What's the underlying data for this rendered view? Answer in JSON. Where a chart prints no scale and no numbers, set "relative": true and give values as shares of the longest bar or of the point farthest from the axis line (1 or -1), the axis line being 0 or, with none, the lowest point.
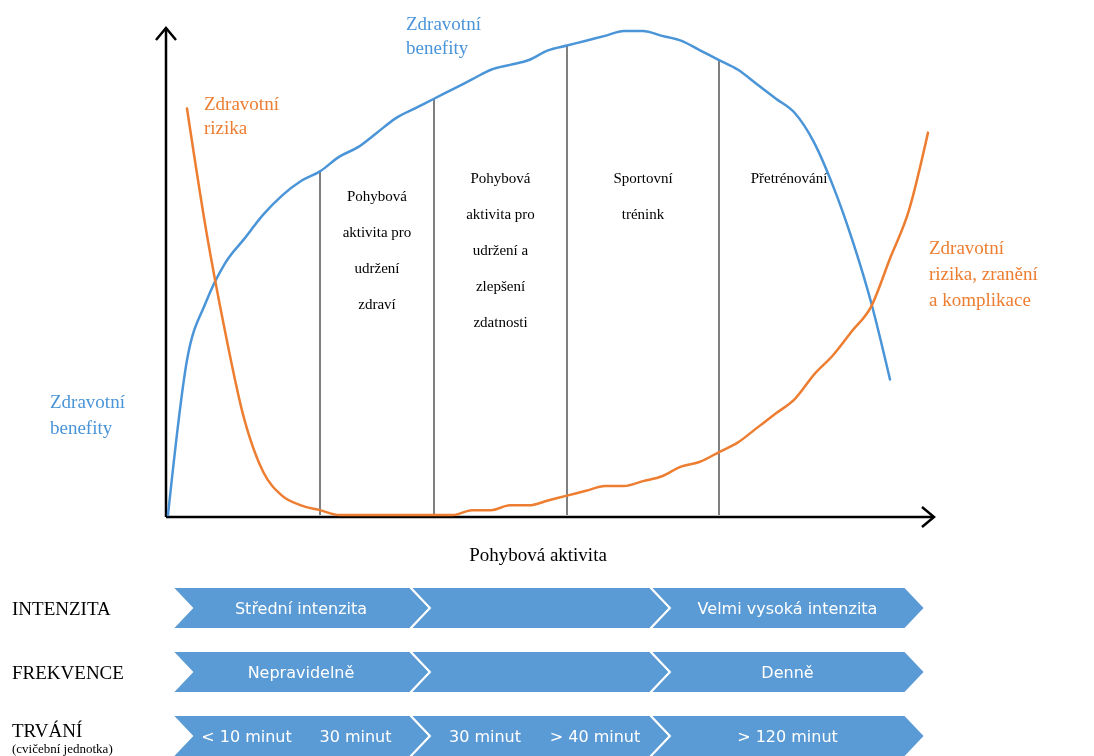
{
  "chart_data": [
    {
      "type": "line",
      "relative": true,
      "grid": "x",
      "xlabel": "Pohybová aktivita",
      "categories": [
        null,
        null,
        null,
        null,
        null,
        null,
        null,
        null,
        null,
        null,
        null,
        null,
        null,
        null,
        null,
        null,
        null,
        null,
        null,
        null,
        null,
        null,
        null,
        null,
        null,
        null,
        null,
        null,
        null,
        null,
        null,
        null,
        null,
        null,
        null,
        null,
        null,
        null,
        null,
        null,
        null
      ],
      "series": [
        {
          "name": "Zdravotní benefity",
          "color": "#4a94d8",
          "values": [
            0,
            0.32,
            0.44,
            0.52,
            0.57,
            0.62,
            0.66,
            0.69,
            0.71,
            0.74,
            0.76,
            0.79,
            0.82,
            0.84,
            0.86,
            0.88,
            0.9,
            0.92,
            0.93,
            0.94,
            0.96,
            0.97,
            0.98,
            0.99,
            1,
            1,
            0.99,
            0.98,
            0.96,
            0.94,
            0.92,
            0.89,
            0.86,
            0.83,
            0.77,
            0.68,
            0.57,
            0.44,
            0.28,
            null,
            null
          ]
        },
        {
          "name": "Zdravotní rizika",
          "color": "#ed7d31",
          "values": [
            null,
            0.84,
            0.59,
            0.38,
            0.2,
            0.09,
            0.04,
            0.02,
            0.01,
            0,
            0,
            0,
            0,
            0,
            0,
            0,
            0.01,
            0.01,
            0.02,
            0.02,
            0.03,
            0.04,
            0.05,
            0.06,
            0.06,
            0.07,
            0.08,
            0.1,
            0.11,
            0.13,
            0.15,
            0.18,
            0.21,
            0.24,
            0.29,
            0.33,
            0.38,
            0.43,
            0.53,
            0.63,
            0.79
          ]
        }
      ],
      "annotations": [
        "Zdravotní benefity",
        "Zdravotní rizika, zranění a komplikace",
        "Pohybová aktivita pro udržení zdraví",
        "Pohybová aktivita pro udržení a zlepšení zdatnosti",
        "Sportovní trénink",
        "Přetrénování"
      ]
    },
    {
      "type": "other",
      "y_categories": [
        "INTENZITA",
        "FREKVENCE",
        "TRVÁNÍ$_{(cvičební jednotka)}$"
      ],
      "cell_labels": [
        [
          [
            "Střední intenzita"
          ],
          null,
          [
            "Velmi vysoká intenzita"
          ]
        ],
        [
          [
            "Nepravidelně"
          ],
          null,
          [
            "Denně"
          ]
        ],
        [
          [
            "< 10 minut",
            "30 minut"
          ],
          [
            "30 minut",
            "> 40 minut"
          ],
          [
            "> 120 minut"
          ]
        ]
      ]
    }
  ]
}
